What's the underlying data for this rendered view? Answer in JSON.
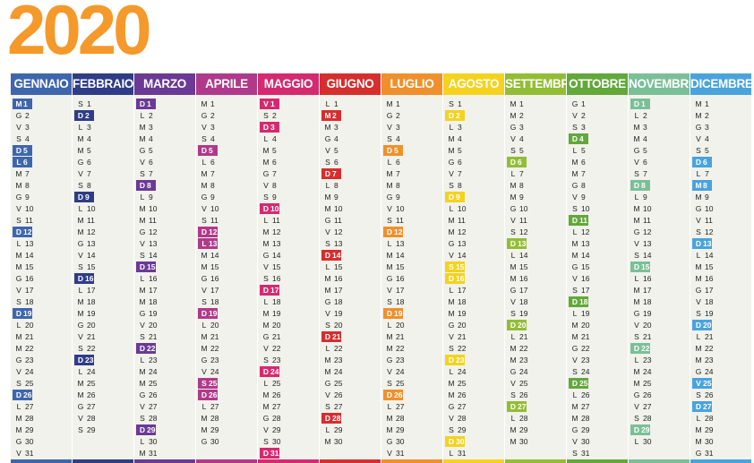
{
  "title": "2020",
  "title_color": "#f5992b",
  "months": [
    {
      "name": "GENNAIO",
      "color": "#3f66ad",
      "first_weekday": 2,
      "days": 31,
      "holidays": [
        1,
        5,
        6,
        12,
        19,
        26
      ]
    },
    {
      "name": "FEBBRAIO",
      "color": "#2f3d86",
      "first_weekday": 5,
      "days": 29,
      "holidays": [
        2,
        9,
        16,
        23
      ]
    },
    {
      "name": "MARZO",
      "color": "#6a3a95",
      "first_weekday": 6,
      "days": 31,
      "holidays": [
        1,
        8,
        15,
        22,
        29
      ]
    },
    {
      "name": "APRILE",
      "color": "#b03a8a",
      "first_weekday": 2,
      "days": 30,
      "holidays": [
        5,
        12,
        13,
        19,
        25,
        26
      ]
    },
    {
      "name": "MAGGIO",
      "color": "#d52a6f",
      "first_weekday": 4,
      "days": 31,
      "holidays": [
        1,
        3,
        10,
        17,
        24,
        31
      ]
    },
    {
      "name": "GIUGNO",
      "color": "#d62e2e",
      "first_weekday": 0,
      "days": 30,
      "holidays": [
        2,
        7,
        14,
        21,
        28
      ]
    },
    {
      "name": "LUGLIO",
      "color": "#f0902c",
      "first_weekday": 2,
      "days": 31,
      "holidays": [
        5,
        12,
        19,
        26
      ]
    },
    {
      "name": "AGOSTO",
      "color": "#f5d21e",
      "first_weekday": 5,
      "days": 31,
      "holidays": [
        2,
        9,
        15,
        16,
        23,
        30
      ]
    },
    {
      "name": "SETTEMBRE",
      "color": "#93bd35",
      "first_weekday": 1,
      "days": 30,
      "holidays": [
        6,
        13,
        20,
        27
      ]
    },
    {
      "name": "OTTOBRE",
      "color": "#62a83a",
      "first_weekday": 3,
      "days": 31,
      "holidays": [
        4,
        11,
        18,
        25
      ]
    },
    {
      "name": "NOVEMBRE",
      "color": "#7bbf98",
      "first_weekday": 6,
      "days": 30,
      "holidays": [
        1,
        8,
        15,
        22,
        29
      ]
    },
    {
      "name": "DICEMBRE",
      "color": "#4aa3dd",
      "first_weekday": 1,
      "days": 31,
      "holidays": [
        6,
        8,
        13,
        20,
        25,
        27
      ]
    }
  ],
  "weekday_letters": [
    "L",
    "M",
    "M",
    "G",
    "V",
    "S",
    "D"
  ]
}
